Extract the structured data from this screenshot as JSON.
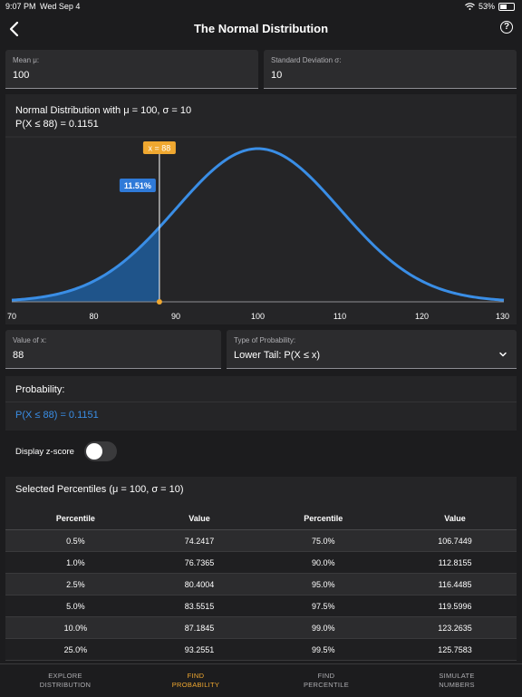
{
  "status": {
    "time": "9:07 PM",
    "date": "Wed Sep 4",
    "battery": "53%",
    "battery_level": 0.53
  },
  "nav": {
    "title": "The Normal Distribution",
    "back_icon": "chevron-left-icon",
    "help_icon": "question-circle-icon",
    "help_glyph": "?"
  },
  "inputs": {
    "mean": {
      "label": "Mean μ:",
      "value": "100"
    },
    "sd": {
      "label": "Standard Deviation σ:",
      "value": "10"
    },
    "x": {
      "label": "Value of x:",
      "value": "88"
    },
    "type": {
      "label": "Type of Probability:",
      "value": "Lower Tail: P(X ≤ x)"
    }
  },
  "chart_data": {
    "type": "area",
    "title": "Normal Distribution with μ = 100, σ = 10",
    "subtitle": "P(X ≤ 88) = 0.1151",
    "mean": 100,
    "sd": 10,
    "xlim": [
      70,
      130
    ],
    "xticks": [
      70,
      80,
      90,
      100,
      110,
      120,
      130
    ],
    "x_marker": 88,
    "marker_label": "x = 88",
    "area_label": "11.51%",
    "shaded": "lower-tail",
    "colors": {
      "curve": "#3a8ee6",
      "fill": "#1f5a96",
      "marker": "#f0a830",
      "area_label": "#2f7ad8"
    }
  },
  "probability": {
    "label": "Probability:",
    "value": "P(X ≤ 88) = 0.1151"
  },
  "zscore": {
    "label": "Display z-score",
    "on": false
  },
  "percentiles": {
    "title": "Selected Percentiles (μ = 100, σ = 10)",
    "headers": [
      "Percentile",
      "Value",
      "Percentile",
      "Value"
    ],
    "rows": [
      [
        "0.5%",
        "74.2417",
        "75.0%",
        "106.7449"
      ],
      [
        "1.0%",
        "76.7365",
        "90.0%",
        "112.8155"
      ],
      [
        "2.5%",
        "80.4004",
        "95.0%",
        "116.4485"
      ],
      [
        "5.0%",
        "83.5515",
        "97.5%",
        "119.5996"
      ],
      [
        "10.0%",
        "87.1845",
        "99.0%",
        "123.2635"
      ],
      [
        "25.0%",
        "93.2551",
        "99.5%",
        "125.7583"
      ]
    ]
  },
  "tabs": [
    {
      "line1": "EXPLORE",
      "line2": "DISTRIBUTION",
      "active": false
    },
    {
      "line1": "FIND",
      "line2": "PROBABILITY",
      "active": true
    },
    {
      "line1": "FIND",
      "line2": "PERCENTILE",
      "active": false
    },
    {
      "line1": "SIMULATE",
      "line2": "NUMBERS",
      "active": false
    }
  ],
  "colors": {
    "accent": "#f0a830",
    "link": "#3a8ee6",
    "background": "#1c1c1e"
  }
}
